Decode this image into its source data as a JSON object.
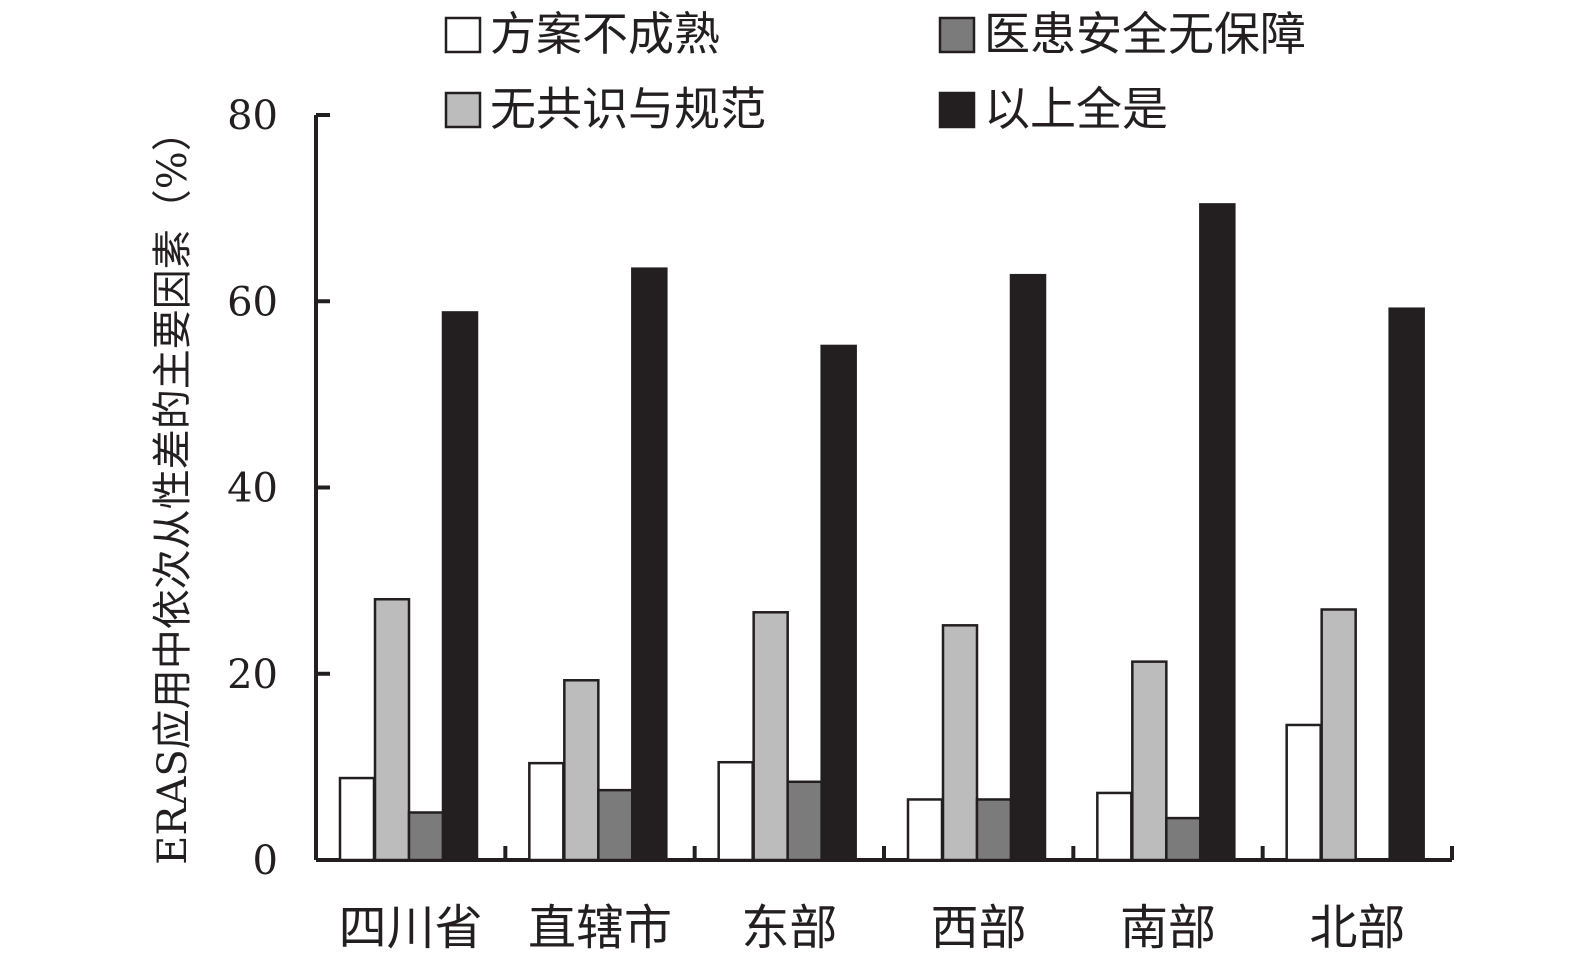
{
  "chart_data": {
    "type": "bar",
    "title": "",
    "xlabel": "",
    "ylabel": "ERAS应用中依次从性差的主要因素（%）",
    "ylim": [
      0,
      80
    ],
    "yticks": [
      0,
      20,
      40,
      60,
      80
    ],
    "grid": false,
    "legend_position": "top",
    "categories": [
      "四川省",
      "直辖市",
      "东部",
      "西部",
      "南部",
      "北部"
    ],
    "series": [
      {
        "name": "方案不成熟",
        "color": "#ffffff",
        "values": [
          8.8,
          10.4,
          10.5,
          6.5,
          7.2,
          14.5
        ]
      },
      {
        "name": "无共识与规范",
        "color": "#bcbcbc",
        "values": [
          28.0,
          19.3,
          26.6,
          25.2,
          21.3,
          26.9
        ]
      },
      {
        "name": "医患安全无保障",
        "color": "#7c7b7b",
        "values": [
          5.1,
          7.5,
          8.4,
          6.5,
          4.5,
          0
        ]
      },
      {
        "name": "以上全是",
        "color": "#231f20",
        "values": [
          58.8,
          63.5,
          55.2,
          62.8,
          70.4,
          59.2
        ]
      }
    ],
    "legend_order": [
      "方案不成熟",
      "医患安全无保障",
      "无共识与规范",
      "以上全是"
    ]
  }
}
